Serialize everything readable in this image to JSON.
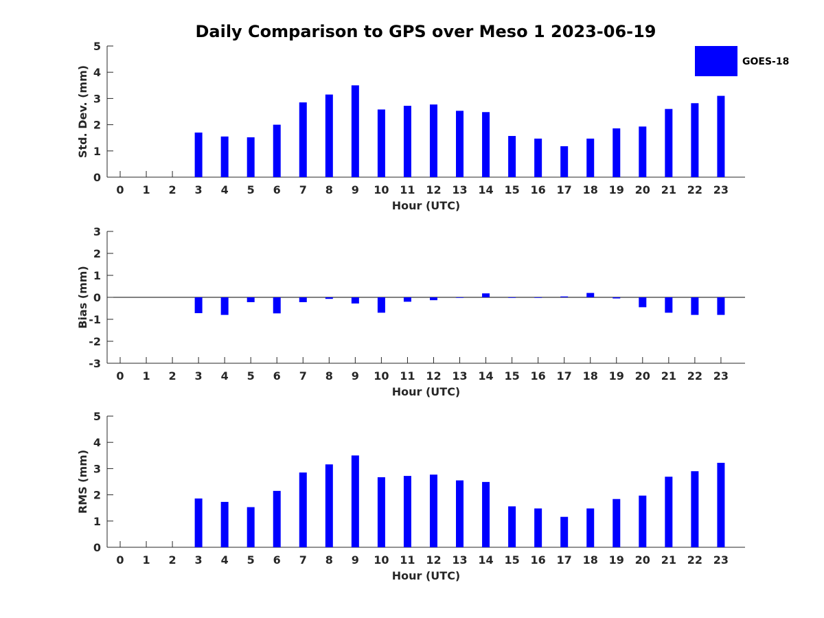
{
  "title": "Daily Comparison to GPS over Meso 1 2023-06-19",
  "legend": {
    "label": "GOES-18",
    "color": "#0000ff",
    "placement": "top-right"
  },
  "chart_data": [
    {
      "type": "bar",
      "xlabel": "Hour (UTC)",
      "ylabel": "Std. Dev. (mm)",
      "ylim": [
        0,
        5
      ],
      "yticks": [
        0,
        1,
        2,
        3,
        4,
        5
      ],
      "categories": [
        "0",
        "1",
        "2",
        "3",
        "4",
        "5",
        "6",
        "7",
        "8",
        "9",
        "10",
        "11",
        "12",
        "13",
        "14",
        "15",
        "16",
        "17",
        "18",
        "19",
        "20",
        "21",
        "22",
        "23"
      ],
      "series": [
        {
          "name": "GOES-18",
          "color": "#0000ff",
          "values": [
            null,
            null,
            null,
            1.7,
            1.55,
            1.52,
            2.0,
            2.85,
            3.15,
            3.5,
            2.58,
            2.72,
            2.77,
            2.53,
            2.48,
            1.57,
            1.47,
            1.18,
            1.47,
            1.86,
            1.93,
            2.6,
            2.82,
            3.1
          ]
        }
      ]
    },
    {
      "type": "bar",
      "xlabel": "Hour (UTC)",
      "ylabel": "Bias (mm)",
      "ylim": [
        -3,
        3
      ],
      "yticks": [
        -3,
        -2,
        -1,
        0,
        1,
        2,
        3
      ],
      "categories": [
        "0",
        "1",
        "2",
        "3",
        "4",
        "5",
        "6",
        "7",
        "8",
        "9",
        "10",
        "11",
        "12",
        "13",
        "14",
        "15",
        "16",
        "17",
        "18",
        "19",
        "20",
        "21",
        "22",
        "23"
      ],
      "series": [
        {
          "name": "GOES-18",
          "color": "#0000ff",
          "values": [
            null,
            null,
            null,
            -0.72,
            -0.8,
            -0.22,
            -0.73,
            -0.22,
            -0.07,
            -0.28,
            -0.7,
            -0.2,
            -0.13,
            -0.02,
            0.18,
            -0.02,
            0.0,
            0.04,
            0.2,
            -0.05,
            -0.45,
            -0.7,
            -0.8,
            -0.8
          ]
        }
      ]
    },
    {
      "type": "bar",
      "xlabel": "Hour (UTC)",
      "ylabel": "RMS (mm)",
      "ylim": [
        0,
        5
      ],
      "yticks": [
        0,
        1,
        2,
        3,
        4,
        5
      ],
      "categories": [
        "0",
        "1",
        "2",
        "3",
        "4",
        "5",
        "6",
        "7",
        "8",
        "9",
        "10",
        "11",
        "12",
        "13",
        "14",
        "15",
        "16",
        "17",
        "18",
        "19",
        "20",
        "21",
        "22",
        "23"
      ],
      "series": [
        {
          "name": "GOES-18",
          "color": "#0000ff",
          "values": [
            null,
            null,
            null,
            1.86,
            1.73,
            1.53,
            2.15,
            2.85,
            3.16,
            3.5,
            2.67,
            2.72,
            2.77,
            2.55,
            2.49,
            1.56,
            1.48,
            1.16,
            1.48,
            1.84,
            1.97,
            2.69,
            2.9,
            3.22
          ]
        }
      ]
    }
  ]
}
